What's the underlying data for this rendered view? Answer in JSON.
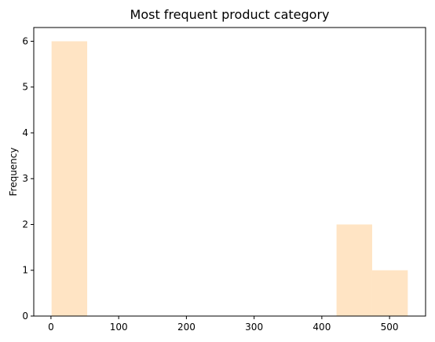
{
  "chart_data": {
    "type": "bar",
    "subtype": "histogram",
    "title": "Most frequent product category",
    "xlabel": "",
    "ylabel": "Frequency",
    "bins": [
      {
        "x0": 0.9,
        "x1": 53.5,
        "count": 6
      },
      {
        "x0": 53.5,
        "x1": 106.1,
        "count": 0
      },
      {
        "x0": 106.1,
        "x1": 158.7,
        "count": 0
      },
      {
        "x0": 158.7,
        "x1": 211.3,
        "count": 0
      },
      {
        "x0": 211.3,
        "x1": 263.9,
        "count": 0
      },
      {
        "x0": 263.9,
        "x1": 316.5,
        "count": 0
      },
      {
        "x0": 316.5,
        "x1": 369.1,
        "count": 0
      },
      {
        "x0": 369.1,
        "x1": 421.7,
        "count": 0
      },
      {
        "x0": 421.7,
        "x1": 474.3,
        "count": 2
      },
      {
        "x0": 474.3,
        "x1": 526.9,
        "count": 1
      }
    ],
    "xlim": [
      -25.4,
      553.2
    ],
    "ylim": [
      0,
      6.3
    ],
    "xticks": [
      0,
      100,
      200,
      300,
      400,
      500
    ],
    "yticks": [
      0,
      1,
      2,
      3,
      4,
      5,
      6
    ],
    "grid": false,
    "legend": "none",
    "bar_color": "#ffe4c4"
  }
}
